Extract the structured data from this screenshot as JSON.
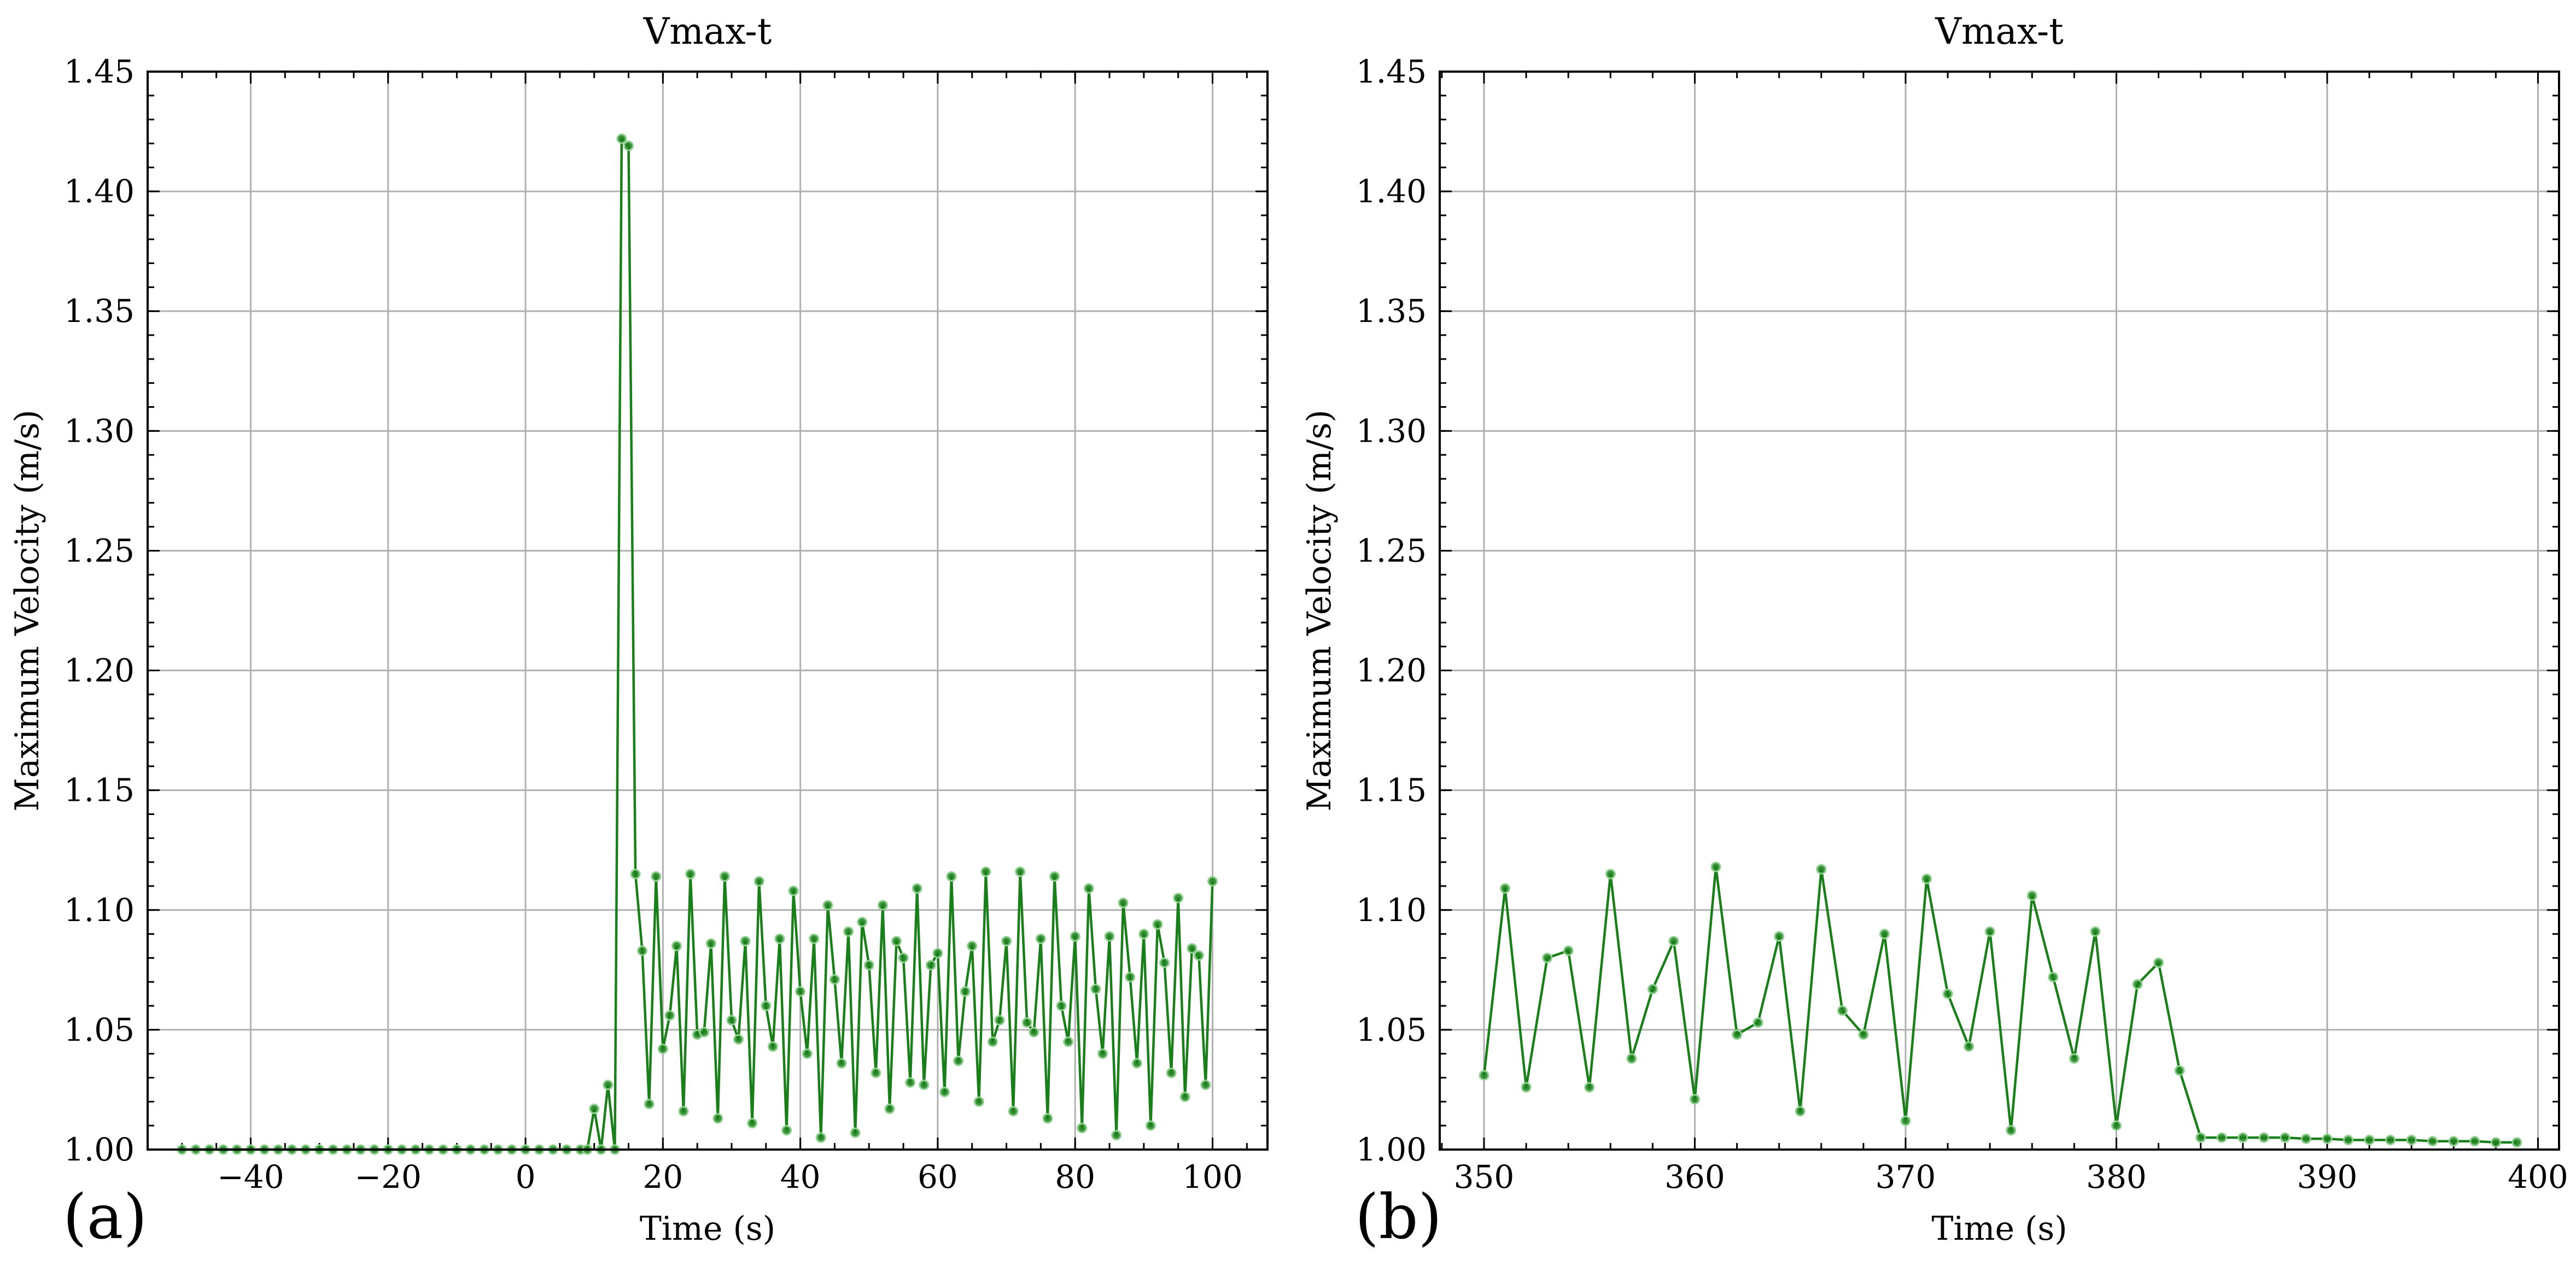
{
  "chart_data": [
    {
      "type": "line",
      "panel_label": "(a)",
      "title": "Vmax-t",
      "xlabel": "Time (s)",
      "ylabel": "Maximum Velocity (m/s)",
      "xlim": [
        -55,
        108
      ],
      "ylim": [
        1.0,
        1.45
      ],
      "xticks": [
        -40,
        -20,
        0,
        20,
        40,
        60,
        80,
        100
      ],
      "xtick_labels": [
        "−40",
        "−20",
        "0",
        "20",
        "40",
        "60",
        "80",
        "100"
      ],
      "yticks": [
        1.0,
        1.05,
        1.1,
        1.15,
        1.2,
        1.25,
        1.3,
        1.35,
        1.4,
        1.45
      ],
      "ytick_labels": [
        "1.00",
        "1.05",
        "1.10",
        "1.15",
        "1.20",
        "1.25",
        "1.30",
        "1.35",
        "1.40",
        "1.45"
      ],
      "grid": true,
      "series": [
        {
          "color": "#1a7f1a",
          "x": [
            -50,
            -48,
            -46,
            -44,
            -42,
            -40,
            -38,
            -36,
            -34,
            -32,
            -30,
            -28,
            -26,
            -24,
            -22,
            -20,
            -18,
            -16,
            -14,
            -12,
            -10,
            -8,
            -6,
            -4,
            -2,
            0,
            2,
            4,
            6,
            8,
            9,
            10,
            11,
            12,
            13,
            14,
            15,
            16,
            17,
            18,
            19,
            20,
            21,
            22,
            23,
            24,
            25,
            26,
            27,
            28,
            29,
            30,
            31,
            32,
            33,
            34,
            35,
            36,
            37,
            38,
            39,
            40,
            41,
            42,
            43,
            44,
            45,
            46,
            47,
            48,
            49,
            50,
            51,
            52,
            53,
            54,
            55,
            56,
            57,
            58,
            59,
            60,
            61,
            62,
            63,
            64,
            65,
            66,
            67,
            68,
            69,
            70,
            71,
            72,
            73,
            74,
            75,
            76,
            77,
            78,
            79,
            80,
            81,
            82,
            83,
            84,
            85,
            86,
            87,
            88,
            89,
            90,
            91,
            92,
            93,
            94,
            95,
            96,
            97,
            98,
            99,
            100
          ],
          "y": [
            1.0,
            1.0,
            1.0,
            1.0,
            1.0,
            1.0,
            1.0,
            1.0,
            1.0,
            1.0,
            1.0,
            1.0,
            1.0,
            1.0,
            1.0,
            1.0,
            1.0,
            1.0,
            1.0,
            1.0,
            1.0,
            1.0,
            1.0,
            1.0,
            1.0,
            1.0,
            1.0,
            1.0,
            1.0,
            1.0,
            1.0,
            1.017,
            1.0,
            1.027,
            1.0,
            1.422,
            1.419,
            1.115,
            1.083,
            1.019,
            1.114,
            1.042,
            1.056,
            1.085,
            1.016,
            1.115,
            1.048,
            1.049,
            1.086,
            1.013,
            1.114,
            1.054,
            1.046,
            1.087,
            1.011,
            1.112,
            1.06,
            1.043,
            1.088,
            1.008,
            1.108,
            1.066,
            1.04,
            1.088,
            1.005,
            1.102,
            1.071,
            1.036,
            1.091,
            1.007,
            1.095,
            1.077,
            1.032,
            1.102,
            1.017,
            1.087,
            1.08,
            1.028,
            1.109,
            1.027,
            1.077,
            1.082,
            1.024,
            1.114,
            1.037,
            1.066,
            1.085,
            1.02,
            1.116,
            1.045,
            1.054,
            1.087,
            1.016,
            1.116,
            1.053,
            1.049,
            1.088,
            1.013,
            1.114,
            1.06,
            1.045,
            1.089,
            1.009,
            1.109,
            1.067,
            1.04,
            1.089,
            1.006,
            1.103,
            1.072,
            1.036,
            1.09,
            1.01,
            1.094,
            1.078,
            1.032,
            1.105,
            1.022,
            1.084,
            1.081,
            1.027,
            1.112
          ]
        }
      ]
    },
    {
      "type": "line",
      "panel_label": "(b)",
      "title": "Vmax-t",
      "xlabel": "Time (s)",
      "ylabel": "Maximum Velocity (m/s)",
      "xlim": [
        347.9,
        401.0
      ],
      "ylim": [
        1.0,
        1.45
      ],
      "xticks": [
        350,
        360,
        370,
        380,
        390,
        400
      ],
      "xtick_labels": [
        "350",
        "360",
        "370",
        "380",
        "390",
        "400"
      ],
      "yticks": [
        1.0,
        1.05,
        1.1,
        1.15,
        1.2,
        1.25,
        1.3,
        1.35,
        1.4,
        1.45
      ],
      "ytick_labels": [
        "1.00",
        "1.05",
        "1.10",
        "1.15",
        "1.20",
        "1.25",
        "1.30",
        "1.35",
        "1.40",
        "1.45"
      ],
      "grid": true,
      "series": [
        {
          "color": "#1a7f1a",
          "x": [
            350,
            351,
            352,
            353,
            354,
            355,
            356,
            357,
            358,
            359,
            360,
            361,
            362,
            363,
            364,
            365,
            366,
            367,
            368,
            369,
            370,
            371,
            372,
            373,
            374,
            375,
            376,
            377,
            378,
            379,
            380,
            381,
            382,
            383,
            384,
            385,
            386,
            387,
            388,
            389,
            390,
            391,
            392,
            393,
            394,
            395,
            396,
            397,
            398,
            399
          ],
          "y": [
            1.031,
            1.109,
            1.026,
            1.08,
            1.083,
            1.026,
            1.115,
            1.038,
            1.067,
            1.087,
            1.021,
            1.118,
            1.048,
            1.053,
            1.089,
            1.016,
            1.117,
            1.058,
            1.048,
            1.09,
            1.012,
            1.113,
            1.065,
            1.043,
            1.091,
            1.008,
            1.106,
            1.072,
            1.038,
            1.091,
            1.01,
            1.069,
            1.078,
            1.033,
            1.005,
            1.005,
            1.005,
            1.005,
            1.005,
            1.0045,
            1.0045,
            1.004,
            1.004,
            1.004,
            1.004,
            1.0035,
            1.0035,
            1.0035,
            1.003,
            1.003
          ]
        }
      ]
    }
  ]
}
